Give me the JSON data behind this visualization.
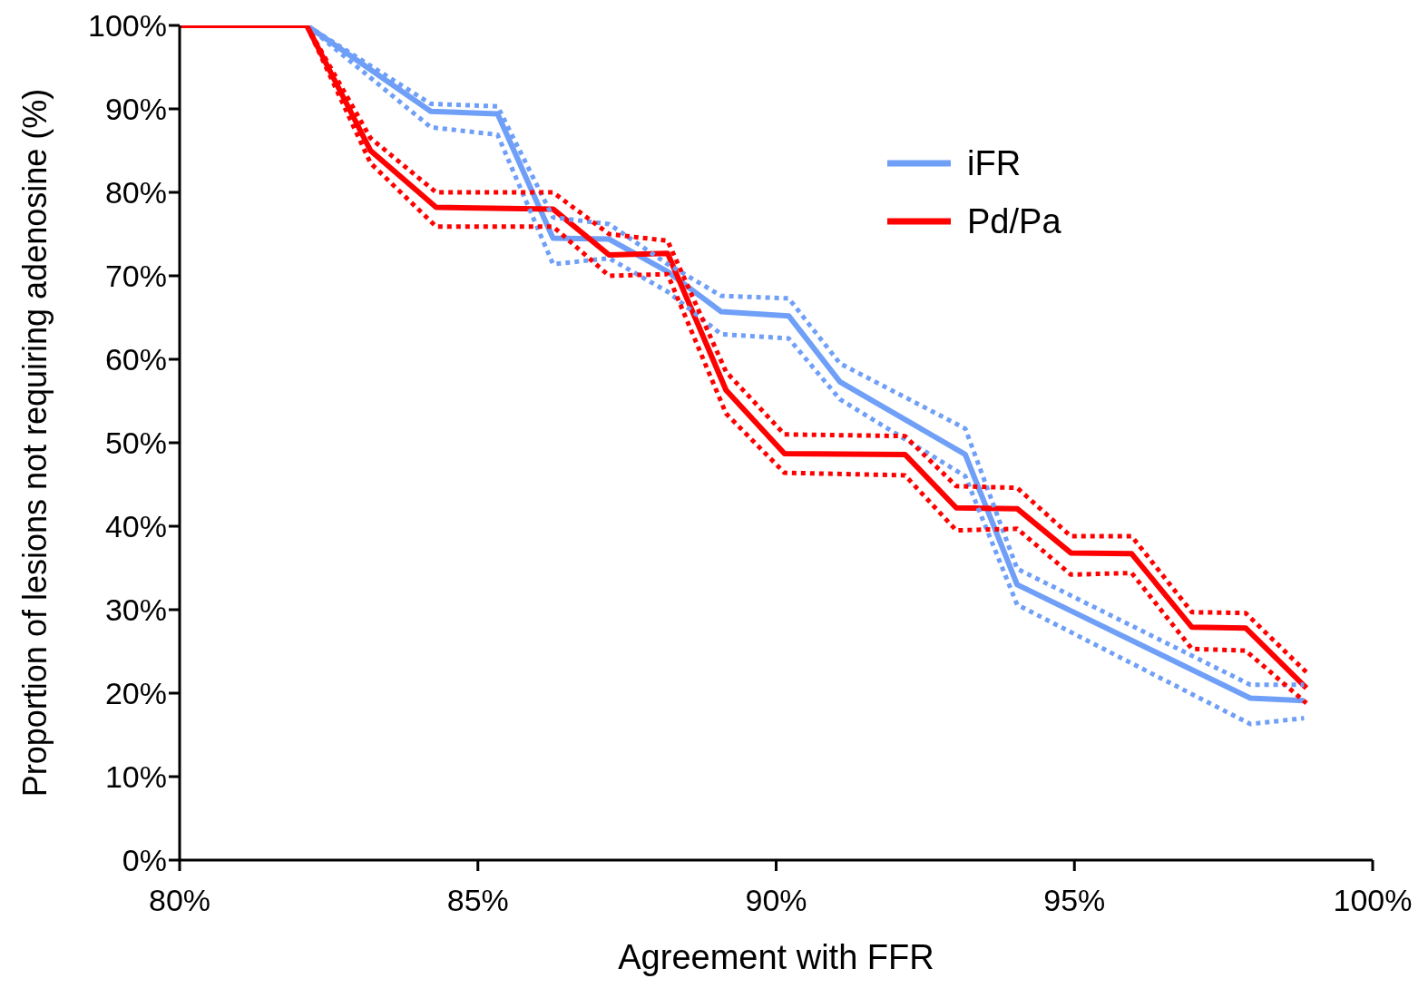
{
  "chart_data": {
    "type": "line",
    "xlabel": "Agreement with FFR",
    "ylabel": "Proportion of lesions not requiring adenosine (%)",
    "xlim": [
      80,
      100
    ],
    "ylim": [
      0,
      100
    ],
    "xticks": [
      {
        "value": 80,
        "label": "80%"
      },
      {
        "value": 85,
        "label": "85%"
      },
      {
        "value": 90,
        "label": "90%"
      },
      {
        "value": 95,
        "label": "95%"
      },
      {
        "value": 100,
        "label": "100%"
      }
    ],
    "yticks": [
      {
        "value": 0,
        "label": "0%"
      },
      {
        "value": 10,
        "label": "10%"
      },
      {
        "value": 20,
        "label": "20%"
      },
      {
        "value": 30,
        "label": "30%"
      },
      {
        "value": 40,
        "label": "40%"
      },
      {
        "value": 50,
        "label": "50%"
      },
      {
        "value": 60,
        "label": "60%"
      },
      {
        "value": 70,
        "label": "70%"
      },
      {
        "value": 80,
        "label": "80%"
      },
      {
        "value": 90,
        "label": "90%"
      },
      {
        "value": 100,
        "label": "100%"
      }
    ],
    "grid": false,
    "legend": "top right",
    "marker": "none",
    "line_style": "solid",
    "series": [
      {
        "name": "iFR",
        "color": "#6f9ff7",
        "x": [
          82.13,
          84.21,
          85.33,
          86.26,
          87.2,
          88.18,
          89.08,
          90.21,
          91.07,
          93.17,
          94.04,
          97.95,
          98.85
        ],
        "values": [
          100,
          89.7,
          89.4,
          74.5,
          74.4,
          70.5,
          65.7,
          65.2,
          57.3,
          48.6,
          33.0,
          19.4,
          19.1
        ]
      },
      {
        "name": "Pd/Pa",
        "color": "#ff0000",
        "x": [
          80,
          82.13,
          83.2,
          84.3,
          86.26,
          87.2,
          88.18,
          89.16,
          90.14,
          92.16,
          93.02,
          94.04,
          94.94,
          95.96,
          96.97,
          97.87,
          98.89
        ],
        "values": [
          100,
          100,
          85.0,
          78.2,
          78.0,
          72.5,
          72.7,
          56.3,
          48.7,
          48.6,
          42.2,
          42.1,
          36.8,
          36.7,
          27.9,
          27.8,
          20.6
        ]
      },
      {
        "color": "#6f9ff7",
        "line_style": "dotted",
        "x": [
          82.13,
          84.21,
          85.33,
          86.26,
          87.2,
          88.18,
          89.08,
          90.21,
          91.07,
          93.17,
          94.04,
          97.95,
          98.85
        ],
        "values": [
          100,
          90.6,
          90.3,
          77,
          76.2,
          71.4,
          67.6,
          67.3,
          59.5,
          51.7,
          34.9,
          21.0,
          21.0
        ]
      },
      {
        "color": "#6f9ff7",
        "line_style": "dotted",
        "x": [
          82.13,
          84.21,
          85.33,
          86.26,
          87.2,
          88.18,
          89.08,
          90.21,
          91.07,
          93.17,
          94.04,
          97.95,
          98.85
        ],
        "values": [
          100,
          87.8,
          86.9,
          71.4,
          72.1,
          68.1,
          63.0,
          62.5,
          55.2,
          46.0,
          30.6,
          16.3,
          17.0
        ]
      },
      {
        "color": "#ff0000",
        "line_style": "dotted",
        "x": [
          82.13,
          83.2,
          84.3,
          86.26,
          87.2,
          88.18,
          89.16,
          90.14,
          92.16,
          93.02,
          94.04,
          94.94,
          95.96,
          96.97,
          97.87,
          98.89
        ],
        "values": [
          100,
          86.5,
          80.0,
          80.0,
          75.0,
          74.2,
          58.5,
          51.0,
          50.8,
          44.8,
          44.6,
          38.8,
          38.8,
          29.7,
          29.6,
          22.5
        ]
      },
      {
        "color": "#ff0000",
        "line_style": "dotted",
        "x": [
          82.13,
          83.2,
          84.3,
          86.26,
          87.2,
          88.18,
          89.16,
          90.14,
          92.16,
          93.02,
          94.04,
          94.94,
          95.96,
          96.97,
          97.87,
          98.89
        ],
        "values": [
          100,
          83.5,
          75.9,
          75.9,
          70.0,
          70.2,
          53.5,
          46.4,
          46.1,
          39.5,
          39.7,
          34.2,
          34.4,
          25.3,
          25.1,
          18.8
        ]
      }
    ]
  }
}
